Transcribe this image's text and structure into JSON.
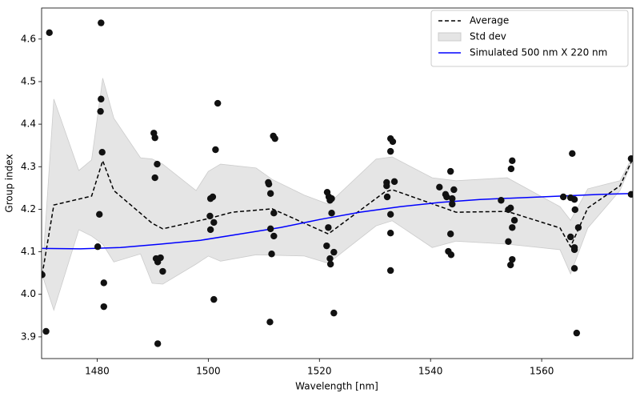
{
  "chart_data": {
    "type": "scatter",
    "xlabel": "Wavelength [nm]",
    "ylabel": "Group index",
    "xlim": [
      1470,
      1576.4
    ],
    "ylim": [
      3.849,
      4.673
    ],
    "xticks": [
      1480,
      1500,
      1520,
      1540,
      1560
    ],
    "yticks": [
      3.9,
      {
        "value": 4,
        "label": "4.0"
      },
      4.1,
      4.2,
      4.3,
      4.4,
      4.5,
      4.6
    ],
    "legend": "upper right",
    "scatter": {
      "color": "#111111",
      "x": [
        1470.1,
        1470.8,
        1471.4,
        1480.1,
        1480.4,
        1480.6,
        1480.7,
        1480.7,
        1480.9,
        1481.2,
        1481.2,
        1490.2,
        1490.4,
        1490.4,
        1490.8,
        1490.6,
        1490.9,
        1491.4,
        1491.8,
        1490.9,
        1500.3,
        1500.4,
        1500.4,
        1500.8,
        1501.0,
        1501.3,
        1501.7,
        1501.0,
        1510.8,
        1510.9,
        1511.1,
        1511.2,
        1511.2,
        1511.4,
        1511.7,
        1512.0,
        1511.8,
        1511.8,
        1521.4,
        1521.6,
        1521.7,
        1521.9,
        1522.2,
        1522.2,
        1521.3,
        1521.9,
        1522.0,
        1522.6,
        1522.6,
        1532.1,
        1532.1,
        1532.2,
        1532.8,
        1533.2,
        1532.8,
        1532.8,
        1532.8,
        1533.5,
        1532.8,
        1541.6,
        1542.7,
        1542.9,
        1543.6,
        1544.2,
        1543.9,
        1543.9,
        1543.6,
        1543.2,
        1543.7,
        1552.7,
        1554.0,
        1554.4,
        1554.7,
        1554.5,
        1554.7,
        1555.1,
        1554.0,
        1554.7,
        1554.4,
        1563.9,
        1565.2,
        1565.5,
        1565.9,
        1566.0,
        1565.2,
        1565.9,
        1565.9,
        1565.9,
        1566.3,
        1566.6,
        1576.1,
        1576.1
      ],
      "values": [
        4.046,
        3.913,
        4.615,
        4.112,
        4.188,
        4.43,
        4.638,
        4.459,
        4.334,
        4.027,
        3.971,
        4.379,
        4.368,
        4.274,
        4.306,
        4.084,
        4.076,
        4.086,
        4.054,
        3.884,
        4.184,
        4.152,
        4.225,
        4.229,
        4.169,
        4.34,
        4.449,
        3.988,
        4.263,
        4.259,
        3.935,
        4.237,
        4.154,
        4.095,
        4.372,
        4.366,
        4.191,
        4.137,
        4.24,
        4.157,
        4.229,
        4.221,
        4.225,
        4.191,
        4.114,
        4.084,
        4.071,
        4.099,
        3.956,
        4.263,
        4.255,
        4.229,
        4.366,
        4.359,
        4.336,
        4.188,
        4.144,
        4.265,
        4.056,
        4.252,
        4.235,
        4.229,
        4.289,
        4.246,
        4.225,
        4.212,
        4.142,
        4.101,
        4.093,
        4.221,
        4.199,
        4.203,
        4.314,
        4.295,
        4.157,
        4.174,
        4.124,
        4.082,
        4.069,
        4.229,
        4.227,
        4.331,
        4.223,
        4.199,
        4.135,
        4.11,
        4.105,
        4.061,
        3.909,
        4.157,
        4.319,
        4.235
      ]
    },
    "series": [
      {
        "name": "Average",
        "type": "line",
        "dash": true,
        "color": "#000000",
        "x": [
          1470.1,
          1472.2,
          1479.0,
          1481.0,
          1483.0,
          1489.9,
          1491.8,
          1500.0,
          1504.3,
          1511.5,
          1521.6,
          1531.7,
          1533.1,
          1544.6,
          1553.8,
          1563.3,
          1565.2,
          1568.3,
          1574.1,
          1576.4
        ],
        "values": [
          4.046,
          4.21,
          4.231,
          4.314,
          4.244,
          4.167,
          4.154,
          4.178,
          4.193,
          4.201,
          4.142,
          4.24,
          4.246,
          4.193,
          4.195,
          4.156,
          4.112,
          4.203,
          4.255,
          4.319
        ]
      },
      {
        "name": "Std dev",
        "type": "band",
        "color": "#e5e5e5",
        "x": [
          1470.1,
          1472.2,
          1476.7,
          1479.0,
          1481.0,
          1483.0,
          1487.8,
          1489.9,
          1491.8,
          1497.8,
          1500.0,
          1502.2,
          1508.6,
          1511.5,
          1517.3,
          1521.6,
          1530.2,
          1533.1,
          1540.3,
          1544.6,
          1553.8,
          1563.3,
          1565.2,
          1568.3,
          1574.1,
          1576.4
        ],
        "upper": [
          4.046,
          4.459,
          4.291,
          4.316,
          4.508,
          4.414,
          4.321,
          4.318,
          4.306,
          4.244,
          4.289,
          4.306,
          4.297,
          4.27,
          4.233,
          4.212,
          4.318,
          4.323,
          4.274,
          4.267,
          4.274,
          4.206,
          4.174,
          4.248,
          4.267,
          4.325
        ],
        "lower": [
          4.046,
          3.963,
          4.152,
          4.137,
          4.118,
          4.076,
          4.095,
          4.026,
          4.024,
          4.071,
          4.09,
          4.078,
          4.093,
          4.092,
          4.09,
          4.073,
          4.161,
          4.173,
          4.11,
          4.125,
          4.118,
          4.105,
          4.048,
          4.156,
          4.244,
          4.316
        ]
      },
      {
        "name": "Simulated 500 nm X 220 nm",
        "type": "line",
        "color": "#0000ff",
        "x": [
          1470.1,
          1477.0,
          1484.2,
          1491.4,
          1498.6,
          1505.8,
          1513.0,
          1520.1,
          1527.3,
          1534.5,
          1541.7,
          1548.9,
          1556.1,
          1563.3,
          1570.5,
          1576.4
        ],
        "values": [
          4.108,
          4.107,
          4.11,
          4.118,
          4.127,
          4.142,
          4.157,
          4.176,
          4.193,
          4.206,
          4.216,
          4.223,
          4.227,
          4.231,
          4.235,
          4.237
        ]
      }
    ]
  }
}
